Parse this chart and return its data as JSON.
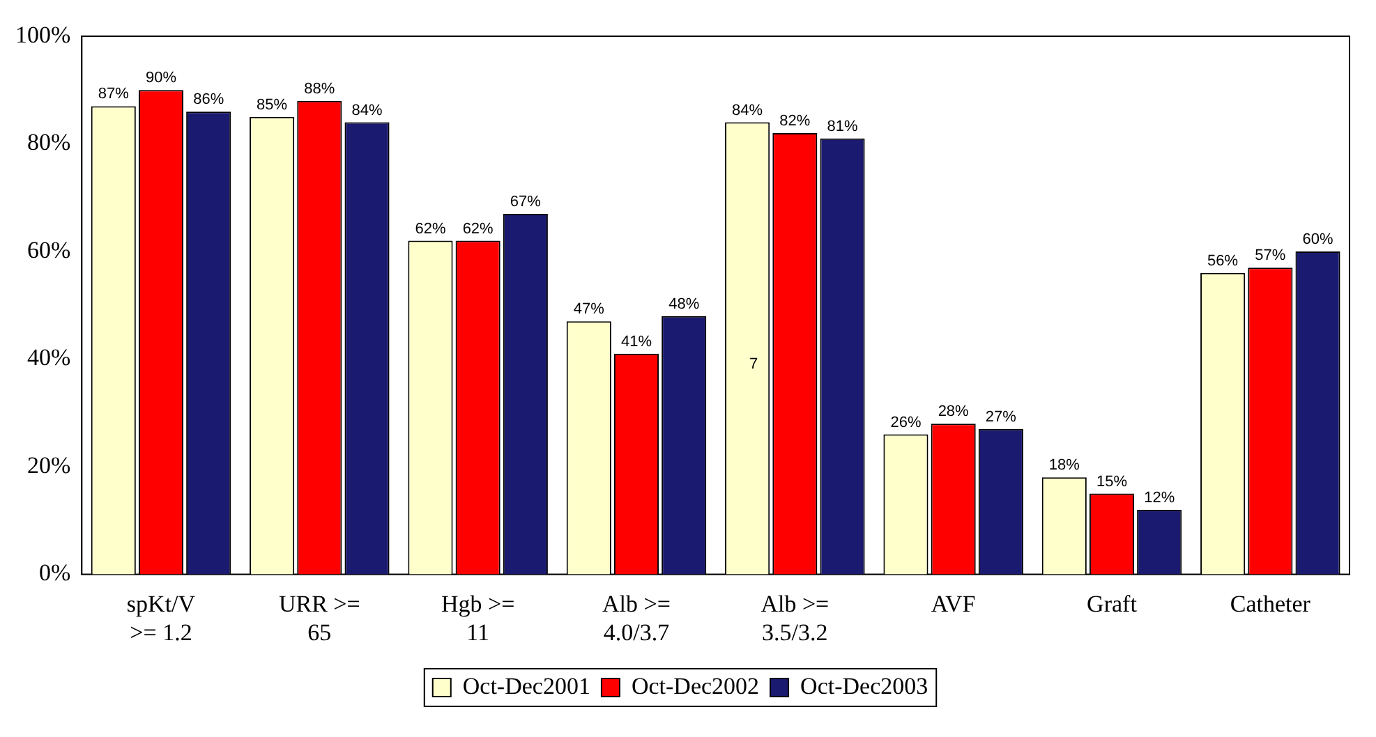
{
  "chart_data": {
    "type": "bar",
    "categories": [
      "spKt/V >= 1.2",
      "URR >= 65",
      "Hgb >= 11",
      "Alb >= 4.0/3.7",
      "Alb >= 3.5/3.2",
      "AVF",
      "Graft",
      "Catheter"
    ],
    "series": [
      {
        "name": "Oct-Dec2001",
        "color": "#ffffcc",
        "values": [
          87,
          85,
          62,
          47,
          84,
          26,
          18,
          56
        ],
        "value_labels": [
          "87%",
          "85%",
          "62%",
          "47%",
          "84%",
          "26%",
          "18%",
          "56%"
        ]
      },
      {
        "name": "Oct-Dec2002",
        "color": "#ff0000",
        "values": [
          90,
          88,
          62,
          41,
          82,
          28,
          15,
          57
        ],
        "value_labels": [
          "90%",
          "88%",
          "62%",
          "41%",
          "82%",
          "28%",
          "15%",
          "57%"
        ]
      },
      {
        "name": "Oct-Dec2003",
        "color": "#1a1a70",
        "values": [
          86,
          84,
          67,
          48,
          81,
          27,
          12,
          60
        ],
        "value_labels": [
          "86%",
          "84%",
          "67%",
          "48%",
          "81%",
          "27%",
          "12%",
          "60%"
        ]
      }
    ],
    "ylim": [
      0,
      100
    ],
    "yticks": [
      {
        "value": 0,
        "label": "0%"
      },
      {
        "value": 20,
        "label": "20%"
      },
      {
        "value": 40,
        "label": "40%"
      },
      {
        "value": 60,
        "label": "60%"
      },
      {
        "value": 80,
        "label": "80%"
      },
      {
        "value": 100,
        "label": "100%"
      }
    ],
    "grid": false,
    "legend": "bottom",
    "annotations": [
      "7"
    ]
  }
}
